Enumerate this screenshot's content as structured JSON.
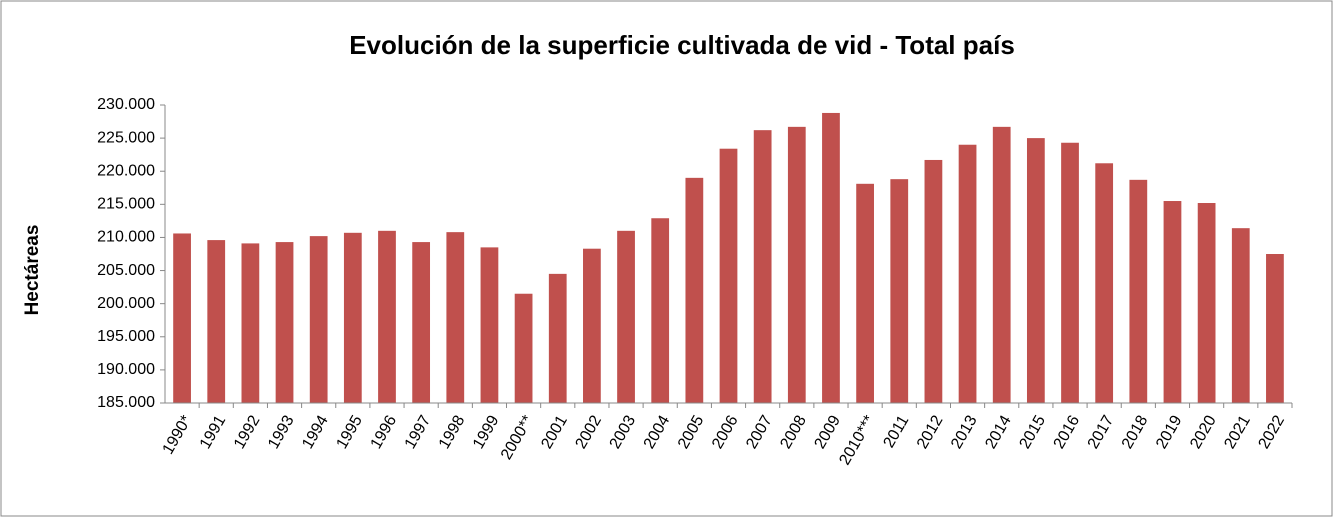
{
  "chart_data": {
    "type": "bar",
    "title": "Evolución de la superficie cultivada de vid - Total país",
    "y_label": "Hectáreas",
    "categories": [
      "1990*",
      "1991",
      "1992",
      "1993",
      "1994",
      "1995",
      "1996",
      "1997",
      "1998",
      "1999",
      "2000**",
      "2001",
      "2002",
      "2003",
      "2004",
      "2005",
      "2006",
      "2007",
      "2008",
      "2009",
      "2010***",
      "2011",
      "2012",
      "2013",
      "2014",
      "2015",
      "2016",
      "2017",
      "2018",
      "2019",
      "2020",
      "2021",
      "2022"
    ],
    "values": [
      210600,
      209600,
      209100,
      209300,
      210200,
      210700,
      211000,
      209300,
      210800,
      208500,
      201500,
      204500,
      208300,
      211000,
      212900,
      219000,
      223400,
      226200,
      226700,
      228800,
      218100,
      218800,
      221700,
      224000,
      226700,
      225000,
      224300,
      221200,
      218700,
      215500,
      215200,
      211400,
      207500
    ],
    "color": "#c0504d",
    "ylim": [
      185000,
      230000
    ],
    "yticks": [
      {
        "value": 185000,
        "label": "185.000"
      },
      {
        "value": 190000,
        "label": "190.000"
      },
      {
        "value": 195000,
        "label": "195.000"
      },
      {
        "value": 200000,
        "label": "200.000"
      },
      {
        "value": 205000,
        "label": "205.000"
      },
      {
        "value": 210000,
        "label": "210.000"
      },
      {
        "value": 215000,
        "label": "215.000"
      },
      {
        "value": 220000,
        "label": "220.000"
      },
      {
        "value": 225000,
        "label": "225.000"
      },
      {
        "value": 230000,
        "label": "230.000"
      }
    ],
    "grid": false
  }
}
